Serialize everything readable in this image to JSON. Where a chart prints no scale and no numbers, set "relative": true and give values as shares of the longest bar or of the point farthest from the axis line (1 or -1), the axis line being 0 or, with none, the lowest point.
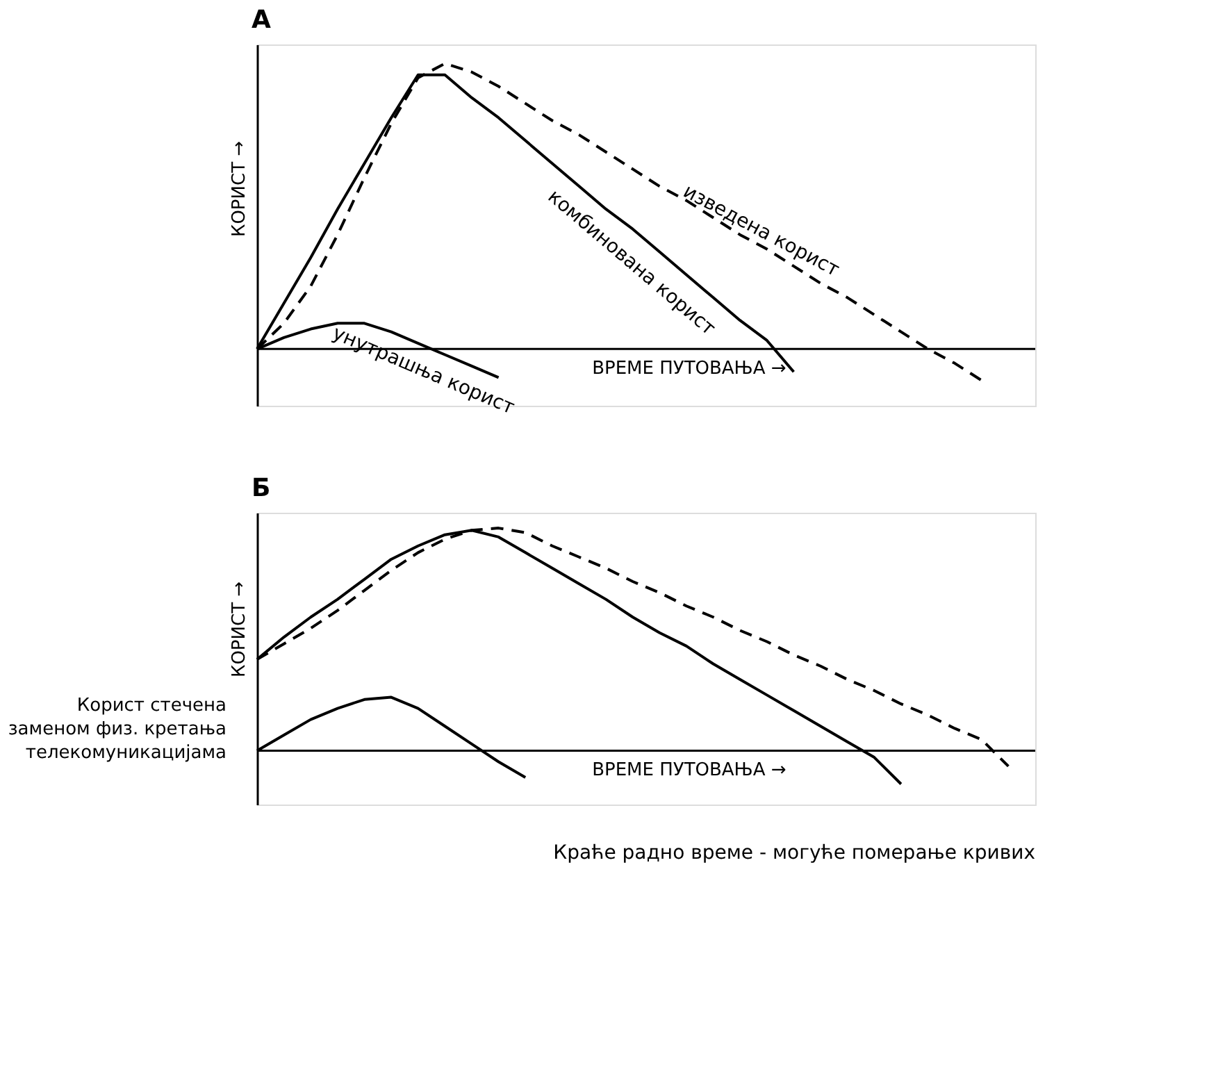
{
  "chart_data": [
    {
      "type": "line",
      "title": "А",
      "relative": true,
      "ylabel": "КОРИСТ →",
      "xlabel": "ВРЕМЕ ПУТОВАЊА →",
      "legend": false,
      "tick_labels": false,
      "grid": false,
      "categories": [
        null,
        null,
        null,
        null,
        null,
        null,
        null,
        null,
        null,
        null,
        null,
        null,
        null,
        null,
        null,
        null,
        null,
        null,
        null,
        null,
        null,
        null,
        null,
        null,
        null,
        null,
        null,
        null,
        null,
        null
      ],
      "series": [
        {
          "name": "унутрашња корист",
          "color": "#000000",
          "line_style": "solid",
          "values": [
            0,
            0.04,
            0.07,
            0.09,
            0.09,
            0.06,
            0.02,
            -0.02,
            -0.06,
            -0.1,
            null,
            null,
            null,
            null,
            null,
            null,
            null,
            null,
            null,
            null,
            null,
            null,
            null,
            null,
            null,
            null,
            null,
            null,
            null,
            null
          ]
        },
        {
          "name": "комбинована корист",
          "color": "#000000",
          "line_style": "solid",
          "values": [
            0,
            0.16,
            0.32,
            0.49,
            0.65,
            0.81,
            0.96,
            0.96,
            0.88,
            0.81,
            0.73,
            0.65,
            0.57,
            0.49,
            0.42,
            0.34,
            0.26,
            0.18,
            0.1,
            0.03,
            -0.08,
            null,
            null,
            null,
            null,
            null,
            null,
            null,
            null,
            null
          ]
        },
        {
          "name": "изведена корист",
          "color": "#000000",
          "line_style": "dashed",
          "values": [
            0,
            0.09,
            0.22,
            0.4,
            0.6,
            0.79,
            0.95,
            1,
            0.97,
            0.92,
            0.86,
            0.8,
            0.75,
            0.69,
            0.63,
            0.57,
            0.52,
            0.46,
            0.4,
            0.35,
            0.29,
            0.23,
            0.18,
            0.12,
            0.06,
            0.0,
            -0.05,
            -0.11,
            null,
            null
          ]
        }
      ]
    },
    {
      "type": "line",
      "title": "Б",
      "relative": true,
      "ylabel": "КОРИСТ →",
      "xlabel": "ВРЕМЕ ПУТОВАЊА →",
      "tick_labels": false,
      "grid": false,
      "annotations": [
        "Корист стечена\nзаменом физ. кретања\nтелекомуникацијама",
        "Краће радно време - могуће померање кривих"
      ],
      "categories": [
        null,
        null,
        null,
        null,
        null,
        null,
        null,
        null,
        null,
        null,
        null,
        null,
        null,
        null,
        null,
        null,
        null,
        null,
        null,
        null,
        null,
        null,
        null,
        null,
        null,
        null,
        null,
        null,
        null,
        null
      ],
      "series": [
        {
          "color": "#000000",
          "line_style": "solid",
          "values": [
            0,
            0.07,
            0.14,
            0.19,
            0.23,
            0.24,
            0.19,
            0.11,
            0.03,
            -0.05,
            -0.12,
            null,
            null,
            null,
            null,
            null,
            null,
            null,
            null,
            null,
            null,
            null,
            null,
            null,
            null,
            null,
            null,
            null,
            null,
            null
          ]
        },
        {
          "color": "#000000",
          "line_style": "solid",
          "values": [
            0.41,
            0.51,
            0.6,
            0.68,
            0.77,
            0.86,
            0.92,
            0.97,
            0.99,
            0.96,
            0.89,
            0.82,
            0.75,
            0.68,
            0.6,
            0.53,
            0.47,
            0.39,
            0.32,
            0.25,
            0.18,
            0.11,
            0.04,
            -0.03,
            -0.15,
            null,
            null,
            null,
            null,
            null
          ]
        },
        {
          "color": "#000000",
          "line_style": "dashed",
          "values": [
            0.41,
            0.48,
            0.55,
            0.63,
            0.72,
            0.81,
            0.89,
            0.95,
            0.99,
            1,
            0.98,
            0.92,
            0.87,
            0.82,
            0.76,
            0.71,
            0.65,
            0.6,
            0.54,
            0.49,
            0.43,
            0.38,
            0.32,
            0.27,
            0.21,
            0.16,
            0.1,
            0.05,
            -0.07,
            null
          ]
        }
      ]
    }
  ]
}
